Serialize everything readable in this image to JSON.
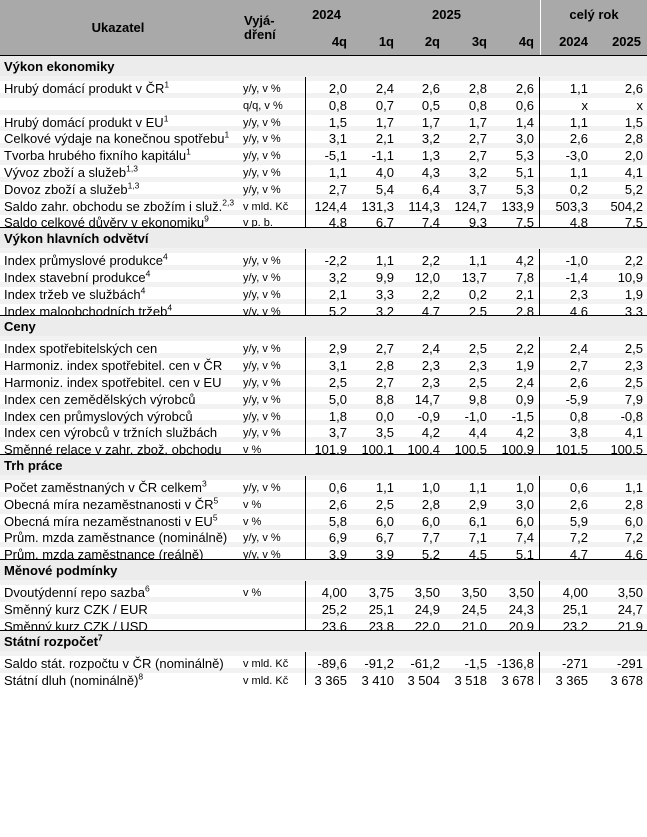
{
  "colors": {
    "header_bg": "#a9a9a9",
    "section_bg": "#ececec",
    "stripe": "#f2f2f2",
    "line": "#000000"
  },
  "table": {
    "header": {
      "col_indicator": "Ukazatel",
      "col_unit_line1": "Vyjá-",
      "col_unit_line2": "dření",
      "group_2024": "2024",
      "group_2025": "2025",
      "group_fullyear": "celý rok",
      "subcols": [
        "4q",
        "1q",
        "2q",
        "3q",
        "4q",
        "2024",
        "2025"
      ]
    },
    "sections": [
      {
        "title": "Výkon ekonomiky",
        "sup": "",
        "rows": [
          {
            "label": "Hrubý domácí produkt v ČR",
            "sup": "1",
            "unit": "y/y, v %",
            "values": [
              "2,0",
              "2,4",
              "2,6",
              "2,8",
              "2,6",
              "1,1",
              "2,6"
            ]
          },
          {
            "label": "",
            "sup": "",
            "unit": "q/q, v %",
            "values": [
              "0,8",
              "0,7",
              "0,5",
              "0,8",
              "0,6",
              "x",
              "x"
            ]
          },
          {
            "label": "Hrubý domácí produkt v EU",
            "sup": "1",
            "unit": "y/y, v %",
            "values": [
              "1,5",
              "1,7",
              "1,7",
              "1,7",
              "1,4",
              "1,1",
              "1,5"
            ]
          },
          {
            "label": "Celkové výdaje na konečnou spotřebu",
            "sup": "1",
            "unit": "y/y, v %",
            "values": [
              "3,1",
              "2,1",
              "3,2",
              "2,7",
              "3,0",
              "2,6",
              "2,8"
            ]
          },
          {
            "label": "Tvorba hrubého fixního kapitálu",
            "sup": "1",
            "unit": "y/y, v %",
            "values": [
              "-5,1",
              "-1,1",
              "1,3",
              "2,7",
              "5,3",
              "-3,0",
              "2,0"
            ]
          },
          {
            "label": "Vývoz zboží a služeb",
            "sup": "1,3",
            "unit": "y/y, v %",
            "values": [
              "1,1",
              "4,0",
              "4,3",
              "3,2",
              "5,1",
              "1,1",
              "4,1"
            ]
          },
          {
            "label": "Dovoz zboží a služeb",
            "sup": "1,3",
            "unit": "y/y, v %",
            "values": [
              "2,7",
              "5,4",
              "6,4",
              "3,7",
              "5,3",
              "0,2",
              "5,2"
            ]
          },
          {
            "label": "Saldo zahr. obchodu se zbožím i služ.",
            "sup": "2,3",
            "unit": "v mld. Kč",
            "values": [
              "124,4",
              "131,3",
              "114,3",
              "124,7",
              "133,9",
              "503,3",
              "504,2"
            ]
          },
          {
            "label": "Saldo celkové důvěry v ekonomiku",
            "sup": "9",
            "unit": "v p. b.",
            "values": [
              "4,8",
              "6,7",
              "7,4",
              "9,3",
              "7,5",
              "4,8",
              "7,5"
            ]
          }
        ]
      },
      {
        "title": "Výkon hlavních odvětví",
        "sup": "",
        "rows": [
          {
            "label": "Index průmyslové produkce",
            "sup": "4",
            "unit": "y/y, v %",
            "values": [
              "-2,2",
              "1,1",
              "2,2",
              "1,1",
              "4,2",
              "-1,0",
              "2,2"
            ]
          },
          {
            "label": "Index stavební produkce",
            "sup": "4",
            "unit": "y/y, v %",
            "values": [
              "3,2",
              "9,9",
              "12,0",
              "13,7",
              "7,8",
              "-1,4",
              "10,9"
            ]
          },
          {
            "label": "Index tržeb ve službách",
            "sup": "4",
            "unit": "y/y, v %",
            "values": [
              "2,1",
              "3,3",
              "2,2",
              "0,2",
              "2,1",
              "2,3",
              "1,9"
            ]
          },
          {
            "label": "Index maloobchodních tržeb",
            "sup": "4",
            "unit": "y/y, v %",
            "values": [
              "5,2",
              "3,2",
              "4,7",
              "2,5",
              "2,8",
              "4,6",
              "3,3"
            ]
          }
        ]
      },
      {
        "title": "Ceny",
        "sup": "",
        "rows": [
          {
            "label": "Index spotřebitelských cen",
            "sup": "",
            "unit": "y/y, v %",
            "values": [
              "2,9",
              "2,7",
              "2,4",
              "2,5",
              "2,2",
              "2,4",
              "2,5"
            ]
          },
          {
            "label": "Harmoniz. index spotřebitel. cen v ČR",
            "sup": "",
            "unit": "y/y, v %",
            "values": [
              "3,1",
              "2,8",
              "2,3",
              "2,3",
              "1,9",
              "2,7",
              "2,3"
            ]
          },
          {
            "label": "Harmoniz. index spotřebitel. cen v EU",
            "sup": "",
            "unit": "y/y, v %",
            "values": [
              "2,5",
              "2,7",
              "2,3",
              "2,5",
              "2,4",
              "2,6",
              "2,5"
            ]
          },
          {
            "label": "Index cen zemědělských výrobců",
            "sup": "",
            "unit": "y/y, v %",
            "values": [
              "5,0",
              "8,8",
              "14,7",
              "9,8",
              "0,9",
              "-5,9",
              "7,9"
            ]
          },
          {
            "label": "Index cen průmyslových výrobců",
            "sup": "",
            "unit": "y/y, v %",
            "values": [
              "1,8",
              "0,0",
              "-0,9",
              "-1,0",
              "-1,5",
              "0,8",
              "-0,8"
            ]
          },
          {
            "label": "Index cen výrobců v tržních službách",
            "sup": "",
            "unit": "y/y, v %",
            "values": [
              "3,7",
              "3,5",
              "4,2",
              "4,4",
              "4,2",
              "3,8",
              "4,1"
            ]
          },
          {
            "label": "Směnné relace v zahr. zbož. obchodu",
            "sup": "",
            "unit": "v %",
            "values": [
              "101,9",
              "100,1",
              "100,4",
              "100,5",
              "100,9",
              "101,5",
              "100,5"
            ]
          }
        ]
      },
      {
        "title": "Trh práce",
        "sup": "",
        "rows": [
          {
            "label": "Počet zaměstnaných v ČR celkem",
            "sup": "3",
            "unit": "y/y, v %",
            "values": [
              "0,6",
              "1,1",
              "1,0",
              "1,1",
              "1,0",
              "0,6",
              "1,1"
            ]
          },
          {
            "label": "Obecná míra nezaměstnanosti v ČR",
            "sup": "5",
            "unit": "v %",
            "values": [
              "2,6",
              "2,5",
              "2,8",
              "2,9",
              "3,0",
              "2,6",
              "2,8"
            ]
          },
          {
            "label": "Obecná míra nezaměstnanosti v EU",
            "sup": "5",
            "unit": "v %",
            "values": [
              "5,8",
              "6,0",
              "6,0",
              "6,1",
              "6,0",
              "5,9",
              "6,0"
            ]
          },
          {
            "label": "Prům. mzda zaměstnance (nominálně)",
            "sup": "",
            "unit": "y/y, v %",
            "values": [
              "6,9",
              "6,7",
              "7,7",
              "7,1",
              "7,4",
              "7,2",
              "7,2"
            ]
          },
          {
            "label": "Prům. mzda zaměstnance (reálně)",
            "sup": "",
            "unit": "y/y, v %",
            "values": [
              "3,9",
              "3,9",
              "5,2",
              "4,5",
              "5,1",
              "4,7",
              "4,6"
            ]
          }
        ]
      },
      {
        "title": "Měnové podmínky",
        "sup": "",
        "rows": [
          {
            "label": "Dvoutýdenní repo sazba",
            "sup": "6",
            "unit": "v %",
            "values": [
              "4,00",
              "3,75",
              "3,50",
              "3,50",
              "3,50",
              "4,00",
              "3,50"
            ]
          },
          {
            "label": "Směnný kurz CZK / EUR",
            "sup": "",
            "unit": "",
            "values": [
              "25,2",
              "25,1",
              "24,9",
              "24,5",
              "24,3",
              "25,1",
              "24,7"
            ]
          },
          {
            "label": "Směnný kurz CZK / USD",
            "sup": "",
            "unit": "",
            "values": [
              "23,6",
              "23,8",
              "22,0",
              "21,0",
              "20,9",
              "23,2",
              "21,9"
            ]
          }
        ]
      },
      {
        "title": "Státní rozpočet",
        "sup": "7",
        "rows": [
          {
            "label": "Saldo stát. rozpočtu v ČR (nominálně)",
            "sup": "",
            "unit": "v mld. Kč",
            "values": [
              "-89,6",
              "-91,2",
              "-61,2",
              "-1,5",
              "-136,8",
              "-271",
              "-291"
            ]
          },
          {
            "label": "Státní dluh (nominálně)",
            "sup": "8",
            "unit": "v mld. Kč",
            "values": [
              "3 365",
              "3 410",
              "3 504",
              "3 518",
              "3 678",
              "3 365",
              "3 678"
            ]
          }
        ]
      }
    ]
  }
}
